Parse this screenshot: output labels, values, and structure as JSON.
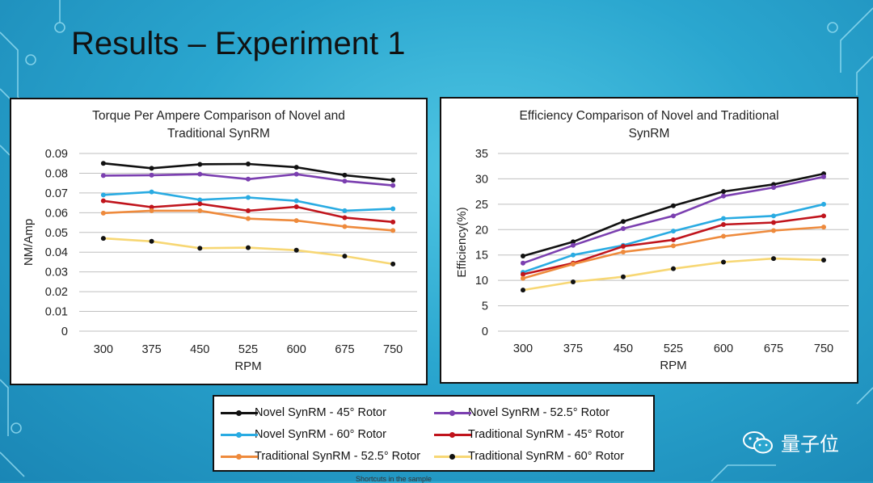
{
  "slide": {
    "title": "Results – Experiment 1",
    "footnote": "Shortcuts in the sample"
  },
  "brand": {
    "name": "量子位",
    "icon": "wechat-bubbles-icon"
  },
  "chart_data": [
    {
      "type": "line",
      "title": "Torque Per Ampere  Comparison of Novel and Traditional SynRM",
      "title_lines": [
        "Torque Per Ampere  Comparison of Novel and",
        "Traditional SynRM"
      ],
      "xlabel": "RPM",
      "ylabel": "NM/Amp",
      "categories": [
        "300",
        "375",
        "450",
        "525",
        "600",
        "675",
        "750"
      ],
      "ylim": [
        0,
        0.09
      ],
      "yticks": [
        "0",
        "0.01",
        "0.02",
        "0.03",
        "0.04",
        "0.05",
        "0.06",
        "0.07",
        "0.08",
        "0.09"
      ],
      "grid": true,
      "series": [
        {
          "name": "Novel SynRM - 45° Rotor",
          "color": "#111111",
          "values": [
            0.085,
            0.0825,
            0.0845,
            0.0847,
            0.083,
            0.079,
            0.0765
          ]
        },
        {
          "name": "Novel SynRM - 52.5° Rotor",
          "color": "#7b3fb0",
          "values": [
            0.0788,
            0.079,
            0.0795,
            0.077,
            0.0795,
            0.076,
            0.0738
          ]
        },
        {
          "name": "Novel SynRM - 60° Rotor",
          "color": "#29abe2",
          "values": [
            0.069,
            0.0705,
            0.0665,
            0.0677,
            0.066,
            0.061,
            0.062
          ]
        },
        {
          "name": "Traditional SynRM - 45° Rotor",
          "color": "#c0141c",
          "values": [
            0.066,
            0.0628,
            0.0645,
            0.061,
            0.063,
            0.0575,
            0.0553
          ]
        },
        {
          "name": "Traditional SynRM - 52.5° Rotor",
          "color": "#ee8a3c",
          "values": [
            0.0598,
            0.061,
            0.061,
            0.057,
            0.056,
            0.053,
            0.051
          ]
        },
        {
          "name": "Traditional SynRM - 60° Rotor",
          "color": "#f7d774",
          "values": [
            0.047,
            0.0455,
            0.042,
            0.0423,
            0.041,
            0.038,
            0.034
          ]
        }
      ]
    },
    {
      "type": "line",
      "title": "Efficiency Comparison  of Novel and Traditional SynRM",
      "title_lines": [
        "Efficiency Comparison  of Novel and Traditional",
        "SynRM"
      ],
      "xlabel": "RPM",
      "ylabel": "Efficiency(%)",
      "categories": [
        "300",
        "375",
        "450",
        "525",
        "600",
        "675",
        "750"
      ],
      "ylim": [
        0,
        35
      ],
      "yticks": [
        "0",
        "5",
        "10",
        "15",
        "20",
        "25",
        "30",
        "35"
      ],
      "grid": true,
      "series": [
        {
          "name": "Novel SynRM - 45° Rotor",
          "color": "#111111",
          "values": [
            14.8,
            17.6,
            21.6,
            24.7,
            27.5,
            28.9,
            31
          ]
        },
        {
          "name": "Novel SynRM - 52.5° Rotor",
          "color": "#7b3fb0",
          "values": [
            13.4,
            16.9,
            20.2,
            22.7,
            26.6,
            28.3,
            30.4
          ]
        },
        {
          "name": "Novel SynRM - 60° Rotor",
          "color": "#29abe2",
          "values": [
            11.6,
            15,
            16.9,
            19.7,
            22.2,
            22.7,
            25
          ]
        },
        {
          "name": "Traditional SynRM - 45° Rotor",
          "color": "#c0141c",
          "values": [
            11.2,
            13.4,
            16.7,
            18,
            21,
            21.4,
            22.7
          ]
        },
        {
          "name": "Traditional SynRM - 52.5° Rotor",
          "color": "#ee8a3c",
          "values": [
            10.4,
            13.2,
            15.6,
            16.8,
            18.7,
            19.8,
            20.5
          ]
        },
        {
          "name": "Traditional SynRM - 60° Rotor",
          "color": "#f7d774",
          "values": [
            8.1,
            9.7,
            10.7,
            12.3,
            13.6,
            14.3,
            14
          ]
        }
      ]
    }
  ],
  "legend": {
    "items": [
      {
        "label": "Novel SynRM - 45° Rotor",
        "color": "#111111"
      },
      {
        "label": "Novel SynRM - 52.5° Rotor",
        "color": "#7b3fb0"
      },
      {
        "label": "Novel SynRM - 60° Rotor",
        "color": "#29abe2"
      },
      {
        "label": "Traditional SynRM - 45° Rotor",
        "color": "#c0141c"
      },
      {
        "label": "Traditional SynRM - 52.5° Rotor",
        "color": "#ee8a3c"
      },
      {
        "label": "Traditional SynRM - 60° Rotor",
        "color": "#f7d774"
      }
    ]
  }
}
